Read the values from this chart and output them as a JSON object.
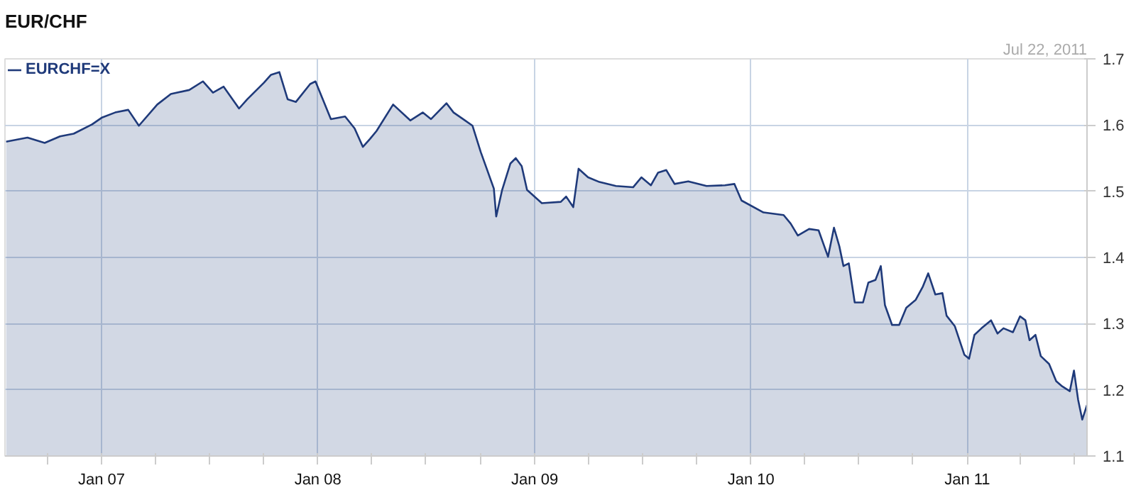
{
  "chart_data": {
    "type": "area",
    "title": "EUR/CHF",
    "annotations": [
      "Jul 22, 2011"
    ],
    "legend": "top left",
    "grid": true,
    "xlim": [
      "2006-07-22",
      "2011-07-22"
    ],
    "ylim": [
      1.1,
      1.7
    ],
    "yticks": [
      1.1,
      1.2,
      1.3,
      1.4,
      1.5,
      1.6,
      1.7
    ],
    "xticks": [
      {
        "value": "2006-10-01",
        "label": null
      },
      {
        "value": "2007-01-01",
        "label": "Jan 07"
      },
      {
        "value": "2007-04-01",
        "label": null
      },
      {
        "value": "2007-07-01",
        "label": null
      },
      {
        "value": "2007-10-01",
        "label": null
      },
      {
        "value": "2008-01-01",
        "label": "Jan 08"
      },
      {
        "value": "2008-04-01",
        "label": null
      },
      {
        "value": "2008-07-01",
        "label": null
      },
      {
        "value": "2008-10-01",
        "label": null
      },
      {
        "value": "2009-01-01",
        "label": "Jan 09"
      },
      {
        "value": "2009-04-01",
        "label": null
      },
      {
        "value": "2009-07-01",
        "label": null
      },
      {
        "value": "2009-10-01",
        "label": null
      },
      {
        "value": "2010-01-01",
        "label": "Jan 10"
      },
      {
        "value": "2010-04-01",
        "label": null
      },
      {
        "value": "2010-07-01",
        "label": null
      },
      {
        "value": "2010-10-01",
        "label": null
      },
      {
        "value": "2011-01-01",
        "label": "Jan 11"
      },
      {
        "value": "2011-04-01",
        "label": null
      },
      {
        "value": "2011-07-01",
        "label": null
      }
    ],
    "x": [
      "2006-07-24",
      "2006-08-29",
      "2006-09-27",
      "2006-10-23",
      "2006-11-15",
      "2006-12-16",
      "2007-01-01",
      "2007-01-24",
      "2007-02-15",
      "2007-03-05",
      "2007-04-05",
      "2007-04-28",
      "2007-05-29",
      "2007-06-21",
      "2007-07-08",
      "2007-07-26",
      "2007-08-21",
      "2007-09-04",
      "2007-10-02",
      "2007-10-14",
      "2007-10-28",
      "2007-11-11",
      "2007-11-25",
      "2007-12-19",
      "2007-12-28",
      "2008-01-23",
      "2008-02-16",
      "2008-03-03",
      "2008-03-17",
      "2008-03-29",
      "2008-04-09",
      "2008-05-07",
      "2008-06-05",
      "2008-06-26",
      "2008-07-10",
      "2008-08-05",
      "2008-08-17",
      "2008-09-02",
      "2008-09-18",
      "2008-10-02",
      "2008-10-12",
      "2008-10-24",
      "2008-10-28",
      "2008-11-07",
      "2008-11-21",
      "2008-11-30",
      "2008-12-10",
      "2008-12-19",
      "2009-01-13",
      "2009-02-14",
      "2009-02-23",
      "2009-03-07",
      "2009-03-16",
      "2009-04-01",
      "2009-04-20",
      "2009-05-18",
      "2009-06-16",
      "2009-06-30",
      "2009-07-16",
      "2009-07-28",
      "2009-08-11",
      "2009-08-25",
      "2009-09-17",
      "2009-10-18",
      "2009-11-18",
      "2009-12-04",
      "2009-12-16",
      "2010-01-22",
      "2010-02-25",
      "2010-03-09",
      "2010-03-21",
      "2010-04-09",
      "2010-04-25",
      "2010-05-11",
      "2010-05-21",
      "2010-05-30",
      "2010-06-06",
      "2010-06-15",
      "2010-06-25",
      "2010-07-09",
      "2010-07-18",
      "2010-07-30",
      "2010-08-08",
      "2010-08-15",
      "2010-08-27",
      "2010-09-08",
      "2010-09-20",
      "2010-10-06",
      "2010-10-18",
      "2010-10-27",
      "2010-11-08",
      "2010-11-20",
      "2010-11-27",
      "2010-12-11",
      "2010-12-27",
      "2011-01-04",
      "2011-01-13",
      "2011-01-25",
      "2011-02-10",
      "2011-02-21",
      "2011-03-03",
      "2011-03-19",
      "2011-03-31",
      "2011-04-09",
      "2011-04-16",
      "2011-04-26",
      "2011-05-05",
      "2011-05-19",
      "2011-05-31",
      "2011-06-09",
      "2011-06-23",
      "2011-06-30",
      "2011-07-07",
      "2011-07-14",
      "2011-07-22"
    ],
    "series": [
      {
        "name": "EURCHF=X",
        "color": "#1f3a7a",
        "values": [
          1.575,
          1.581,
          1.573,
          1.583,
          1.587,
          1.601,
          1.611,
          1.619,
          1.623,
          1.599,
          1.631,
          1.647,
          1.653,
          1.666,
          1.649,
          1.658,
          1.625,
          1.639,
          1.664,
          1.676,
          1.68,
          1.639,
          1.635,
          1.662,
          1.666,
          1.609,
          1.613,
          1.595,
          1.567,
          1.579,
          1.591,
          1.631,
          1.607,
          1.619,
          1.609,
          1.633,
          1.619,
          1.609,
          1.599,
          1.559,
          1.534,
          1.504,
          1.462,
          1.502,
          1.542,
          1.55,
          1.538,
          1.502,
          1.482,
          1.484,
          1.492,
          1.476,
          1.534,
          1.521,
          1.514,
          1.508,
          1.506,
          1.521,
          1.509,
          1.528,
          1.532,
          1.511,
          1.515,
          1.508,
          1.509,
          1.511,
          1.486,
          1.468,
          1.464,
          1.451,
          1.433,
          1.443,
          1.441,
          1.401,
          1.445,
          1.417,
          1.387,
          1.391,
          1.332,
          1.332,
          1.362,
          1.366,
          1.387,
          1.328,
          1.298,
          1.298,
          1.324,
          1.336,
          1.356,
          1.376,
          1.344,
          1.346,
          1.312,
          1.296,
          1.253,
          1.247,
          1.283,
          1.293,
          1.305,
          1.285,
          1.293,
          1.287,
          1.311,
          1.305,
          1.275,
          1.283,
          1.251,
          1.239,
          1.213,
          1.206,
          1.198,
          1.229,
          1.185,
          1.155,
          1.177
        ]
      }
    ]
  }
}
